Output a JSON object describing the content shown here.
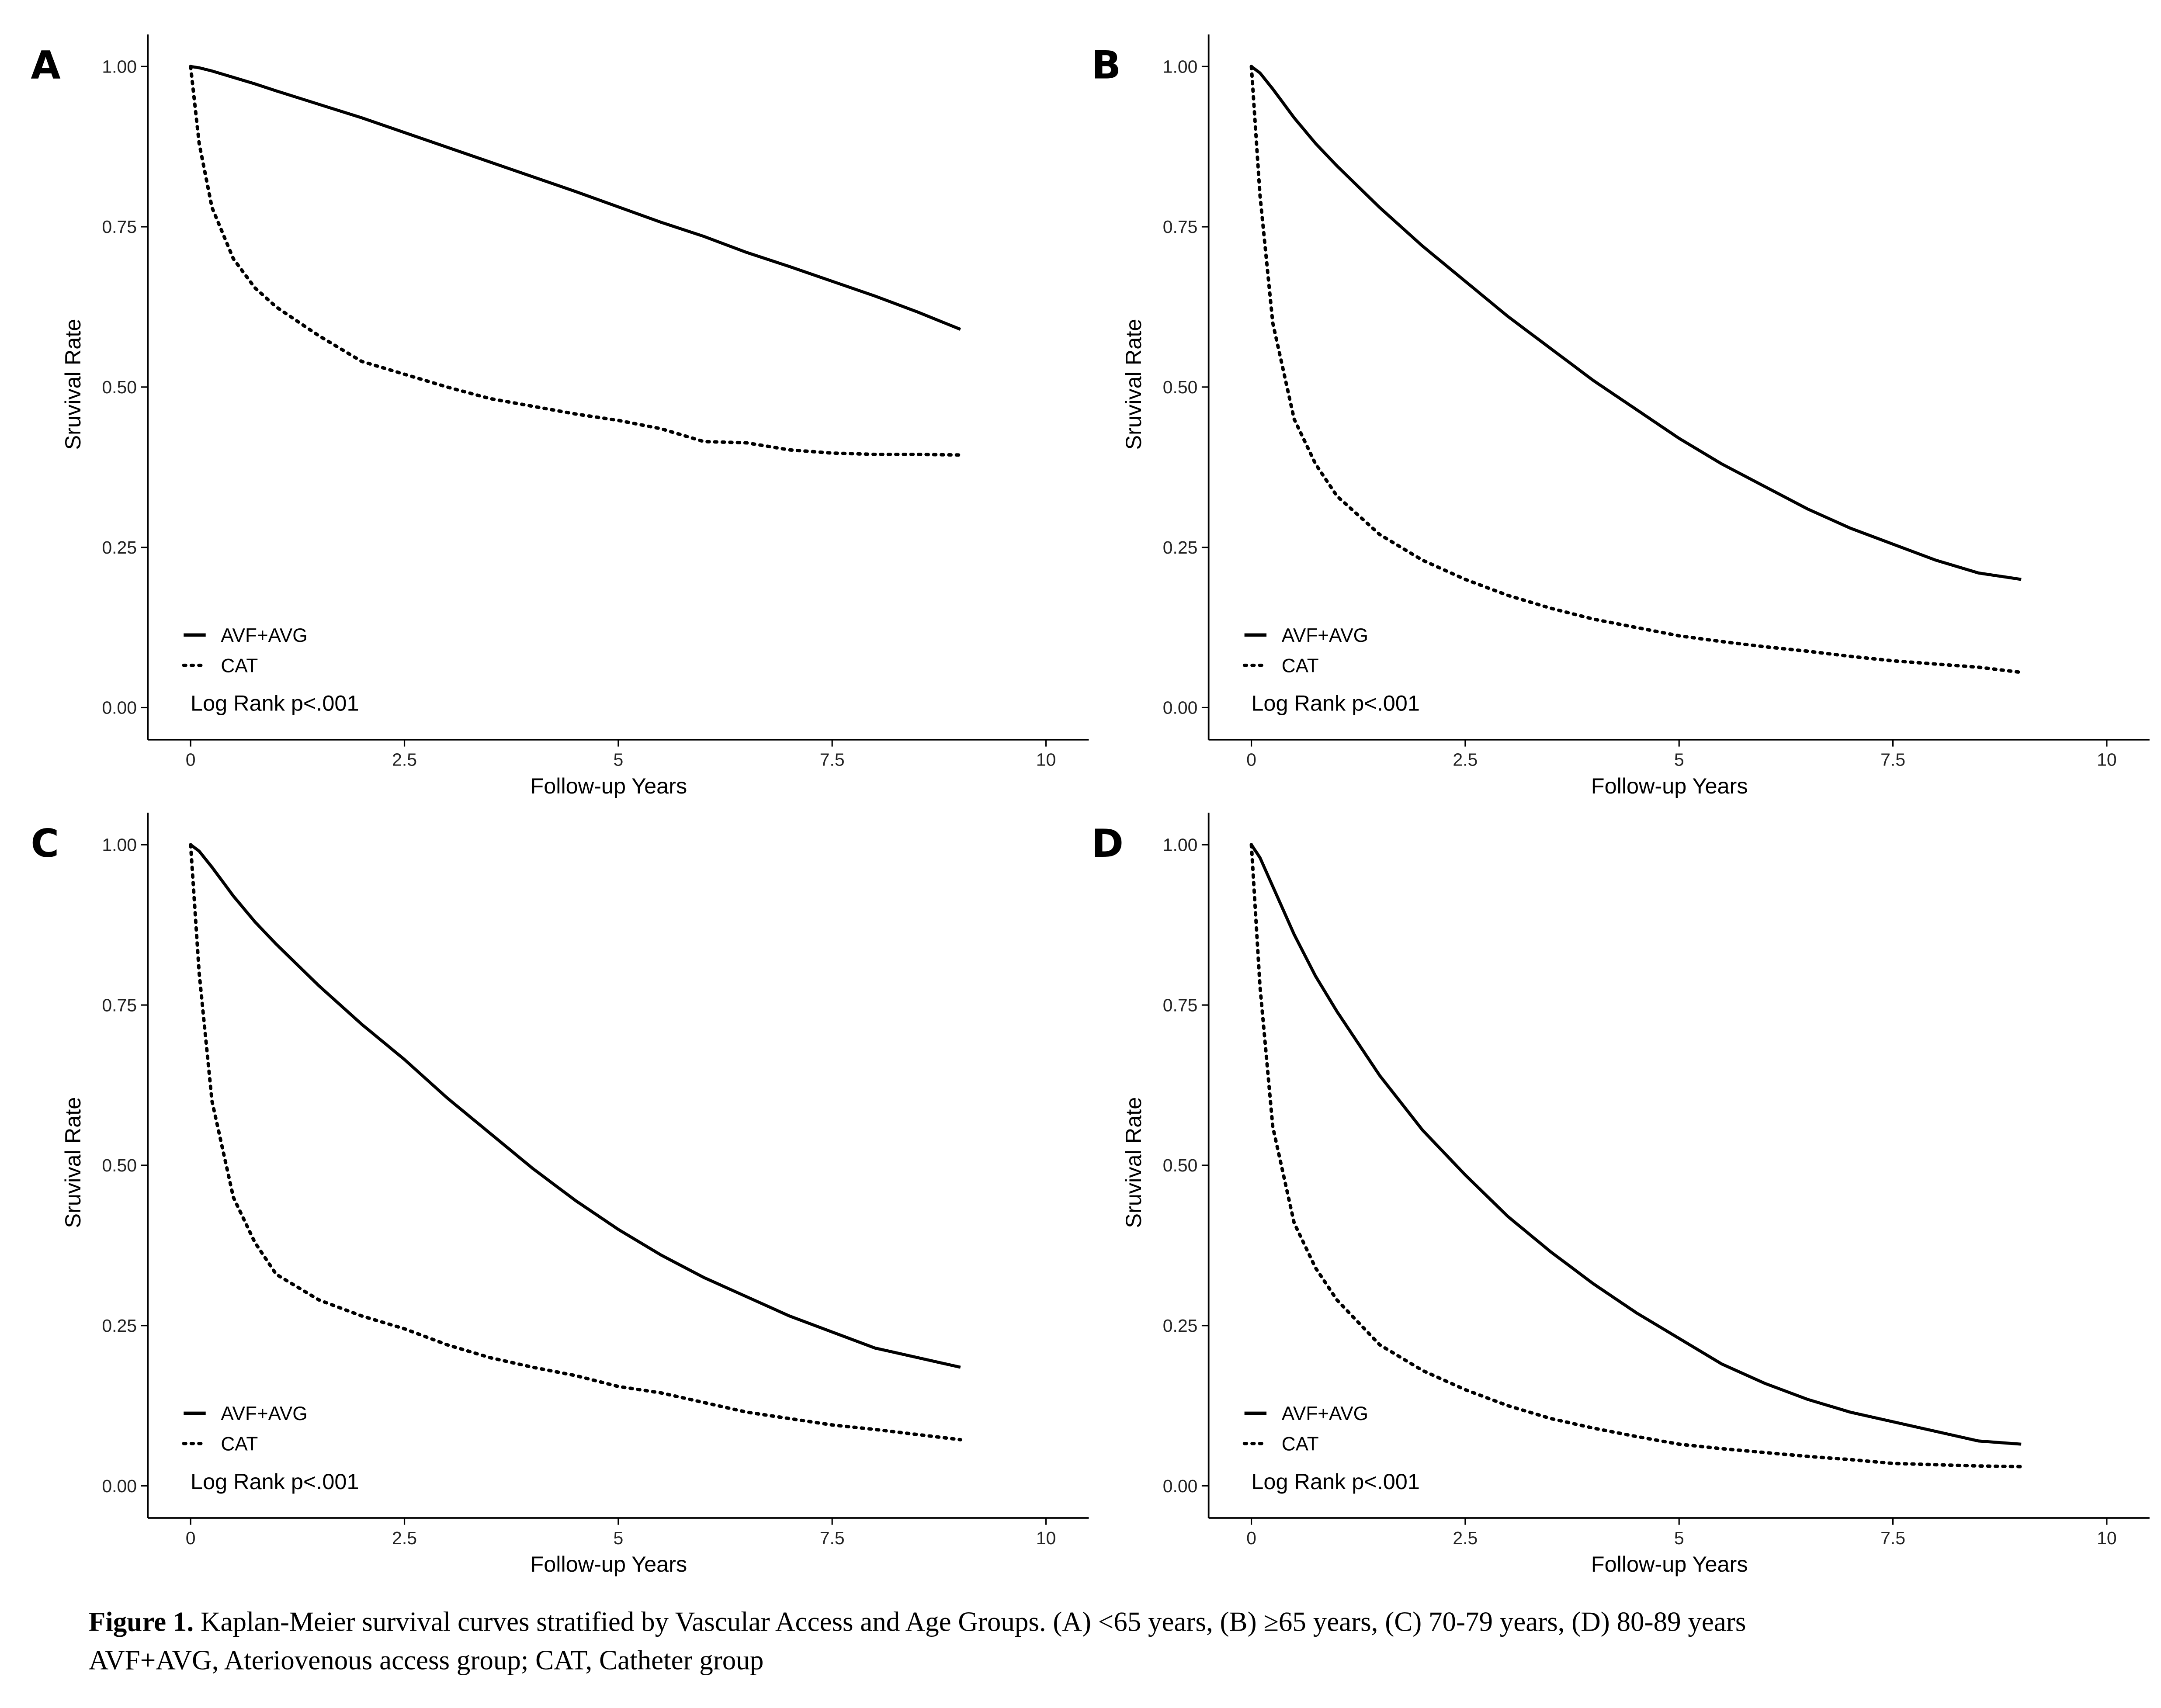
{
  "chart_data": [
    {
      "type": "line",
      "panel_label": "A",
      "xlabel": "Follow-up Years",
      "ylabel": "Sruvival Rate",
      "annotation": "Log Rank p<.001",
      "x": [
        0,
        0.1,
        0.25,
        0.5,
        0.75,
        1,
        1.5,
        2,
        2.5,
        3,
        3.5,
        4,
        4.5,
        5,
        5.5,
        6,
        6.5,
        7,
        7.5,
        8,
        8.5,
        9
      ],
      "series": [
        {
          "name": "AVF+AVG",
          "color": "#000000",
          "line_style": "solid",
          "values": [
            1.0,
            0.998,
            0.993,
            0.983,
            0.973,
            0.962,
            0.941,
            0.92,
            0.897,
            0.874,
            0.851,
            0.828,
            0.805,
            0.781,
            0.757,
            0.735,
            0.71,
            0.688,
            0.665,
            0.642,
            0.617,
            0.59
          ]
        },
        {
          "name": "CAT",
          "color": "#000000",
          "line_style": "dotted",
          "values": [
            1.0,
            0.88,
            0.78,
            0.7,
            0.655,
            0.625,
            0.58,
            0.54,
            0.52,
            0.5,
            0.482,
            0.47,
            0.458,
            0.448,
            0.435,
            0.415,
            0.413,
            0.402,
            0.397,
            0.395,
            0.395,
            0.394
          ]
        }
      ],
      "xlim": [
        -0.5,
        10.5
      ],
      "ylim": [
        -0.05,
        1.05
      ],
      "xticks": [
        0,
        2.5,
        5,
        7.5,
        10
      ],
      "yticks": [
        {
          "value": 0,
          "label": "0.00"
        },
        {
          "value": 0.25,
          "label": "0.25"
        },
        {
          "value": 0.5,
          "label": "0.50"
        },
        {
          "value": 0.75,
          "label": "0.75"
        },
        {
          "value": 1,
          "label": "1.00"
        }
      ]
    },
    {
      "type": "line",
      "panel_label": "B",
      "xlabel": "Follow-up Years",
      "ylabel": "Sruvival Rate",
      "annotation": "Log Rank p<.001",
      "x": [
        0,
        0.1,
        0.25,
        0.5,
        0.75,
        1,
        1.5,
        2,
        2.5,
        3,
        3.5,
        4,
        4.5,
        5,
        5.5,
        6,
        6.5,
        7,
        7.5,
        8,
        8.5,
        9
      ],
      "series": [
        {
          "name": "AVF+AVG",
          "color": "#000000",
          "line_style": "solid",
          "values": [
            1.0,
            0.99,
            0.965,
            0.92,
            0.88,
            0.845,
            0.78,
            0.72,
            0.665,
            0.61,
            0.56,
            0.51,
            0.465,
            0.42,
            0.38,
            0.345,
            0.31,
            0.28,
            0.255,
            0.23,
            0.21,
            0.2
          ]
        },
        {
          "name": "CAT",
          "color": "#000000",
          "line_style": "dotted",
          "values": [
            1.0,
            0.8,
            0.6,
            0.45,
            0.38,
            0.33,
            0.27,
            0.23,
            0.2,
            0.175,
            0.155,
            0.138,
            0.125,
            0.112,
            0.103,
            0.095,
            0.088,
            0.08,
            0.073,
            0.068,
            0.063,
            0.055
          ]
        }
      ],
      "xlim": [
        -0.5,
        10.5
      ],
      "ylim": [
        -0.05,
        1.05
      ],
      "xticks": [
        0,
        2.5,
        5,
        7.5,
        10
      ],
      "yticks": [
        {
          "value": 0,
          "label": "0.00"
        },
        {
          "value": 0.25,
          "label": "0.25"
        },
        {
          "value": 0.5,
          "label": "0.50"
        },
        {
          "value": 0.75,
          "label": "0.75"
        },
        {
          "value": 1,
          "label": "1.00"
        }
      ]
    },
    {
      "type": "line",
      "panel_label": "C",
      "xlabel": "Follow-up Years",
      "ylabel": "Sruvival Rate",
      "annotation": "Log Rank p<.001",
      "x": [
        0,
        0.1,
        0.25,
        0.5,
        0.75,
        1,
        1.5,
        2,
        2.5,
        3,
        3.5,
        4,
        4.5,
        5,
        5.5,
        6,
        6.5,
        7,
        7.5,
        8,
        8.5,
        9
      ],
      "series": [
        {
          "name": "AVF+AVG",
          "color": "#000000",
          "line_style": "solid",
          "values": [
            1.0,
            0.99,
            0.965,
            0.92,
            0.88,
            0.845,
            0.78,
            0.72,
            0.665,
            0.605,
            0.55,
            0.495,
            0.445,
            0.4,
            0.36,
            0.325,
            0.295,
            0.265,
            0.24,
            0.215,
            0.2,
            0.185
          ]
        },
        {
          "name": "CAT",
          "color": "#000000",
          "line_style": "dotted",
          "values": [
            1.0,
            0.8,
            0.6,
            0.45,
            0.38,
            0.33,
            0.29,
            0.265,
            0.245,
            0.22,
            0.2,
            0.185,
            0.172,
            0.155,
            0.145,
            0.13,
            0.115,
            0.105,
            0.095,
            0.088,
            0.08,
            0.072
          ]
        }
      ],
      "xlim": [
        -0.5,
        10.5
      ],
      "ylim": [
        -0.05,
        1.05
      ],
      "xticks": [
        0,
        2.5,
        5,
        7.5,
        10
      ],
      "yticks": [
        {
          "value": 0,
          "label": "0.00"
        },
        {
          "value": 0.25,
          "label": "0.25"
        },
        {
          "value": 0.5,
          "label": "0.50"
        },
        {
          "value": 0.75,
          "label": "0.75"
        },
        {
          "value": 1,
          "label": "1.00"
        }
      ]
    },
    {
      "type": "line",
      "panel_label": "D",
      "xlabel": "Follow-up Years",
      "ylabel": "Sruvival Rate",
      "annotation": "Log Rank p<.001",
      "x": [
        0,
        0.1,
        0.25,
        0.5,
        0.75,
        1,
        1.5,
        2,
        2.5,
        3,
        3.5,
        4,
        4.5,
        5,
        5.5,
        6,
        6.5,
        7,
        7.5,
        8,
        8.5,
        9
      ],
      "series": [
        {
          "name": "AVF+AVG",
          "color": "#000000",
          "line_style": "solid",
          "values": [
            1.0,
            0.98,
            0.935,
            0.86,
            0.795,
            0.74,
            0.64,
            0.555,
            0.485,
            0.42,
            0.365,
            0.315,
            0.27,
            0.23,
            0.19,
            0.16,
            0.135,
            0.115,
            0.1,
            0.085,
            0.07,
            0.065
          ]
        },
        {
          "name": "CAT",
          "color": "#000000",
          "line_style": "dotted",
          "values": [
            1.0,
            0.78,
            0.56,
            0.41,
            0.34,
            0.29,
            0.22,
            0.18,
            0.15,
            0.125,
            0.105,
            0.09,
            0.077,
            0.065,
            0.058,
            0.052,
            0.046,
            0.041,
            0.035,
            0.033,
            0.031,
            0.03
          ]
        }
      ],
      "xlim": [
        -0.5,
        10.5
      ],
      "ylim": [
        -0.05,
        1.05
      ],
      "xticks": [
        0,
        2.5,
        5,
        7.5,
        10
      ],
      "yticks": [
        {
          "value": 0,
          "label": "0.00"
        },
        {
          "value": 0.25,
          "label": "0.25"
        },
        {
          "value": 0.5,
          "label": "0.50"
        },
        {
          "value": 0.75,
          "label": "0.75"
        },
        {
          "value": 1,
          "label": "1.00"
        }
      ]
    }
  ],
  "caption": {
    "label": "Figure 1.",
    "line1": " Kaplan-Meier survival curves stratified by Vascular Access and Age Groups. (A) <65 years, (B) ≥65 years, (C) 70-79 years, (D) 80-89 years",
    "line2": "AVF+AVG, Ateriovenous access group; CAT, Catheter group"
  }
}
